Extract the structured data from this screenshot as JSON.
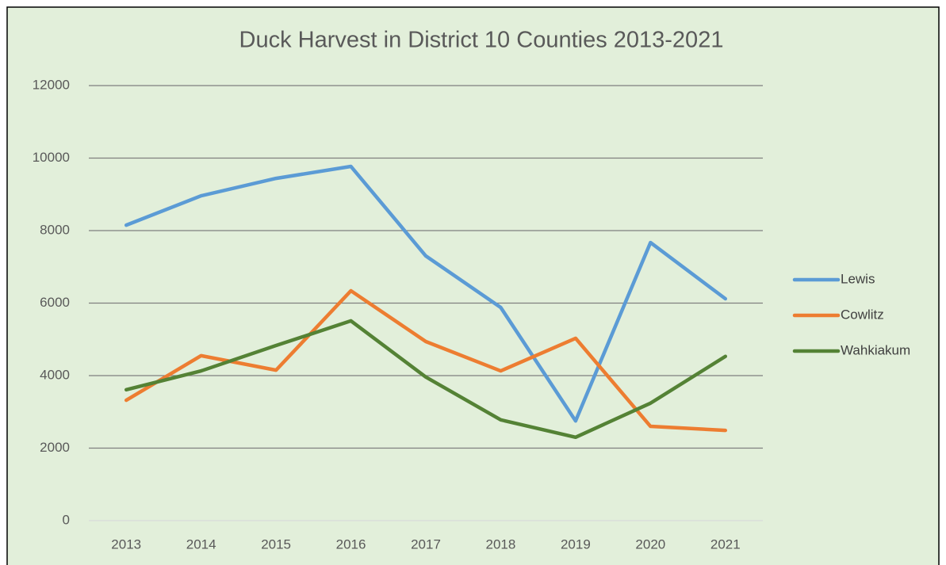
{
  "chart_data": {
    "type": "line",
    "title": "Duck Harvest in District 10 Counties 2013-2021",
    "categories": [
      "2013",
      "2014",
      "2015",
      "2016",
      "2017",
      "2018",
      "2019",
      "2020",
      "2021"
    ],
    "series": [
      {
        "name": "Lewis",
        "color": "#5b9bd5",
        "values": [
          8150,
          8960,
          9440,
          9770,
          7300,
          5880,
          2750,
          7670,
          6120
        ]
      },
      {
        "name": "Cowlitz",
        "color": "#ed7d31",
        "values": [
          3320,
          4550,
          4150,
          6340,
          4940,
          4130,
          5030,
          2600,
          2490
        ]
      },
      {
        "name": "Wahkiakum",
        "color": "#548235",
        "values": [
          3610,
          4130,
          4830,
          5510,
          3960,
          2780,
          2300,
          3240,
          4530
        ]
      }
    ],
    "ylim": [
      0,
      12000
    ],
    "yticks": [
      0,
      2000,
      4000,
      6000,
      8000,
      10000,
      12000
    ],
    "grid": true,
    "legend": "right"
  }
}
